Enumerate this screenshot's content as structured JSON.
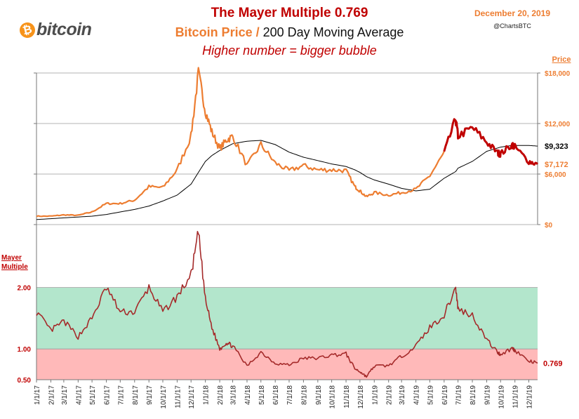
{
  "header": {
    "logo_symbol": "₿",
    "logo_text": "bitcoin",
    "title": "The Mayer Multiple 0.769",
    "subtitle_price": "Bitcoin Price /",
    "subtitle_ma": "200 Day Moving Average",
    "tagline": "Higher number = bigger bubble",
    "date": "December 20, 2019",
    "handle": "@ChartsBTC"
  },
  "colors": {
    "price": "#ed7d31",
    "price_recent": "#c00000",
    "moving_average": "#000000",
    "multiple": "#a52a2a",
    "band_green": "#b3e6cc",
    "band_red": "#ffb9b9"
  },
  "chart_data": [
    {
      "type": "line",
      "ylabel": "Price",
      "ylim": [
        0,
        18000
      ],
      "y_ticks": [
        "$18,000",
        "$12,000",
        "$6,000",
        "$0"
      ],
      "y_tick_values": [
        18000,
        12000,
        6000,
        0
      ],
      "grid": "horizontal",
      "x": [
        "1/1/17",
        "2/1/17",
        "3/1/17",
        "4/1/17",
        "5/1/17",
        "6/1/17",
        "7/1/17",
        "8/1/17",
        "9/1/17",
        "10/1/17",
        "11/1/17",
        "12/1/17",
        "12/17/17",
        "1/1/18",
        "1/15/18",
        "2/1/18",
        "2/15/18",
        "3/1/18",
        "4/1/18",
        "5/1/18",
        "6/1/18",
        "7/1/18",
        "8/1/18",
        "9/1/18",
        "10/1/18",
        "11/1/18",
        "11/20/18",
        "12/1/18",
        "12/15/18",
        "1/1/19",
        "2/1/19",
        "3/1/19",
        "4/1/19",
        "5/1/19",
        "6/1/19",
        "6/26/19",
        "7/1/19",
        "8/1/19",
        "9/1/19",
        "9/25/19",
        "10/1/19",
        "10/26/19",
        "11/1/19",
        "12/1/19",
        "12/20/19"
      ],
      "series": [
        {
          "values": [
            1000,
            1000,
            1150,
            1100,
            1500,
            2500,
            2500,
            2900,
            4500,
            4400,
            6500,
            10500,
            18000,
            13500,
            11000,
            9000,
            10000,
            10500,
            7000,
            9500,
            7300,
            6400,
            7000,
            6500,
            6500,
            6400,
            4500,
            4000,
            3300,
            3800,
            3500,
            3800,
            4200,
            5800,
            8500,
            12500,
            10500,
            11500,
            9800,
            8500,
            8400,
            9500,
            9200,
            7500,
            7172
          ]
        },
        {
          "values": [
            600,
            700,
            800,
            900,
            1000,
            1200,
            1500,
            1800,
            2200,
            2800,
            3500,
            4800,
            6200,
            7500,
            8200,
            8800,
            9200,
            9600,
            9900,
            10000,
            9500,
            8600,
            8000,
            7600,
            7200,
            6900,
            6500,
            6200,
            5700,
            5300,
            4800,
            4300,
            4000,
            4200,
            5500,
            6300,
            6700,
            7500,
            8700,
            9100,
            9200,
            9400,
            9400,
            9400,
            9323
          ]
        }
      ],
      "end_labels": [
        "$9,323",
        "$7,172"
      ]
    },
    {
      "type": "line",
      "ylabel": "Mayer Multiple",
      "ylim": [
        0.5,
        3.0
      ],
      "y_ticks": [
        "2.00",
        "1.00",
        "0.50"
      ],
      "y_tick_values": [
        2.0,
        1.0,
        0.5
      ],
      "bands": [
        {
          "from": 1.0,
          "to": 2.0,
          "color": "#b3e6cc"
        },
        {
          "from": 0.5,
          "to": 1.0,
          "color": "#ffb9b9"
        }
      ],
      "x": [
        "1/1/17",
        "2/1/17",
        "3/1/17",
        "4/1/17",
        "5/1/17",
        "6/1/17",
        "7/1/17",
        "8/1/17",
        "9/1/17",
        "10/1/17",
        "11/1/17",
        "12/1/17",
        "12/17/17",
        "1/1/18",
        "1/15/18",
        "2/1/18",
        "2/15/18",
        "3/1/18",
        "4/1/18",
        "5/1/18",
        "6/1/18",
        "7/1/18",
        "8/1/18",
        "9/1/18",
        "10/1/18",
        "11/1/18",
        "11/20/18",
        "12/1/18",
        "12/15/18",
        "1/1/19",
        "2/1/19",
        "3/1/19",
        "4/1/19",
        "5/1/19",
        "6/1/19",
        "6/26/19",
        "7/1/19",
        "8/1/19",
        "9/1/19",
        "9/25/19",
        "10/1/19",
        "10/26/19",
        "11/1/19",
        "12/1/19",
        "12/20/19"
      ],
      "series": [
        {
          "values": [
            1.6,
            1.3,
            1.45,
            1.2,
            1.5,
            2.0,
            1.6,
            1.6,
            2.0,
            1.6,
            1.85,
            2.2,
            2.9,
            1.8,
            1.35,
            1.0,
            1.1,
            1.05,
            0.72,
            0.95,
            0.77,
            0.74,
            0.85,
            0.85,
            0.9,
            0.92,
            0.68,
            0.63,
            0.55,
            0.72,
            0.73,
            0.88,
            1.05,
            1.35,
            1.55,
            2.0,
            1.65,
            1.55,
            1.15,
            0.94,
            0.91,
            1.01,
            0.98,
            0.8,
            0.769
          ]
        }
      ],
      "end_label": "0.769"
    }
  ],
  "x_axis_ticks": [
    "1/1/17",
    "2/1/17",
    "3/1/17",
    "4/1/17",
    "5/1/17",
    "6/1/17",
    "7/1/17",
    "8/1/17",
    "9/1/17",
    "10/1/17",
    "11/1/17",
    "12/1/17",
    "1/1/18",
    "2/1/18",
    "3/1/18",
    "4/1/18",
    "5/1/18",
    "6/1/18",
    "7/1/18",
    "8/1/18",
    "9/1/18",
    "10/1/18",
    "11/1/18",
    "12/1/18",
    "1/1/19",
    "2/1/19",
    "3/1/19",
    "4/1/19",
    "5/1/19",
    "6/1/19",
    "7/1/19",
    "8/1/19",
    "9/1/19",
    "10/1/19",
    "11/1/19",
    "12/1/19"
  ]
}
